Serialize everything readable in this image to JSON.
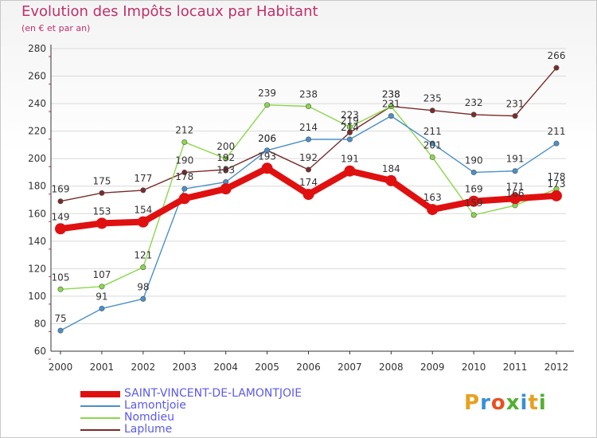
{
  "chart_title": "Evolution des Impôts locaux par Habitant",
  "chart_subtitle": "(en € et par an)",
  "logo_text": "Proxiti",
  "logo_colors": [
    "#e8a020",
    "#3a8fd8",
    "#e85020",
    "#50b030",
    "#3a8fd8",
    "#e8a020",
    "#50b030"
  ],
  "colors": {
    "title": "#c0306a",
    "axis": "#333333",
    "grid": "#d9d9d9",
    "tick": "#333333",
    "label": "#333333"
  },
  "chart_data": {
    "type": "line",
    "title": "Evolution des Impôts locaux par Habitant",
    "subtitle": "(en € et par an)",
    "xlabel": "",
    "ylabel": "",
    "ylim": [
      60,
      280
    ],
    "yticks": [
      60,
      80,
      100,
      120,
      140,
      160,
      180,
      200,
      220,
      240,
      260,
      280
    ],
    "grid": "horizontal",
    "legend_position": "bottom-left",
    "x": [
      "2000",
      "2001",
      "2002",
      "2003",
      "2004",
      "2005",
      "2006",
      "2007",
      "2008",
      "2009",
      "2010",
      "2011",
      "2012"
    ],
    "series": [
      {
        "name": "SAINT-VINCENT-DE-LAMONTJOIE",
        "color": "#e01010",
        "values": [
          149,
          153,
          154,
          171,
          178,
          193,
          174,
          191,
          184,
          163,
          169,
          171,
          173
        ],
        "labels": [
          "149",
          "153",
          "154",
          "",
          "",
          "193",
          "174",
          "191",
          "184",
          "163",
          "169",
          "171",
          "173"
        ]
      },
      {
        "name": "Lamontjoie",
        "color": "#4a90c8",
        "values": [
          75,
          91,
          98,
          178,
          183,
          206,
          214,
          214,
          231,
          211,
          190,
          191,
          211
        ],
        "labels": [
          "75",
          "91",
          "98",
          "178",
          "183",
          "206",
          "214",
          "214",
          "231",
          "211",
          "190",
          "191",
          "211"
        ]
      },
      {
        "name": "Nomdieu",
        "color": "#8ad84a",
        "values": [
          105,
          107,
          121,
          212,
          200,
          239,
          238,
          223,
          238,
          201,
          159,
          166,
          178
        ],
        "labels": [
          "105",
          "107",
          "121",
          "212",
          "200",
          "239",
          "238",
          "223",
          "238",
          "201",
          "159",
          "166",
          "178"
        ]
      },
      {
        "name": "Laplume",
        "color": "#7a2a2a",
        "values": [
          169,
          175,
          177,
          190,
          192,
          206,
          192,
          219,
          238,
          235,
          232,
          231,
          266
        ],
        "labels": [
          "169",
          "175",
          "177",
          "190",
          "192",
          "206",
          "192",
          "219",
          "238",
          "235",
          "232",
          "231",
          "266"
        ]
      }
    ]
  }
}
